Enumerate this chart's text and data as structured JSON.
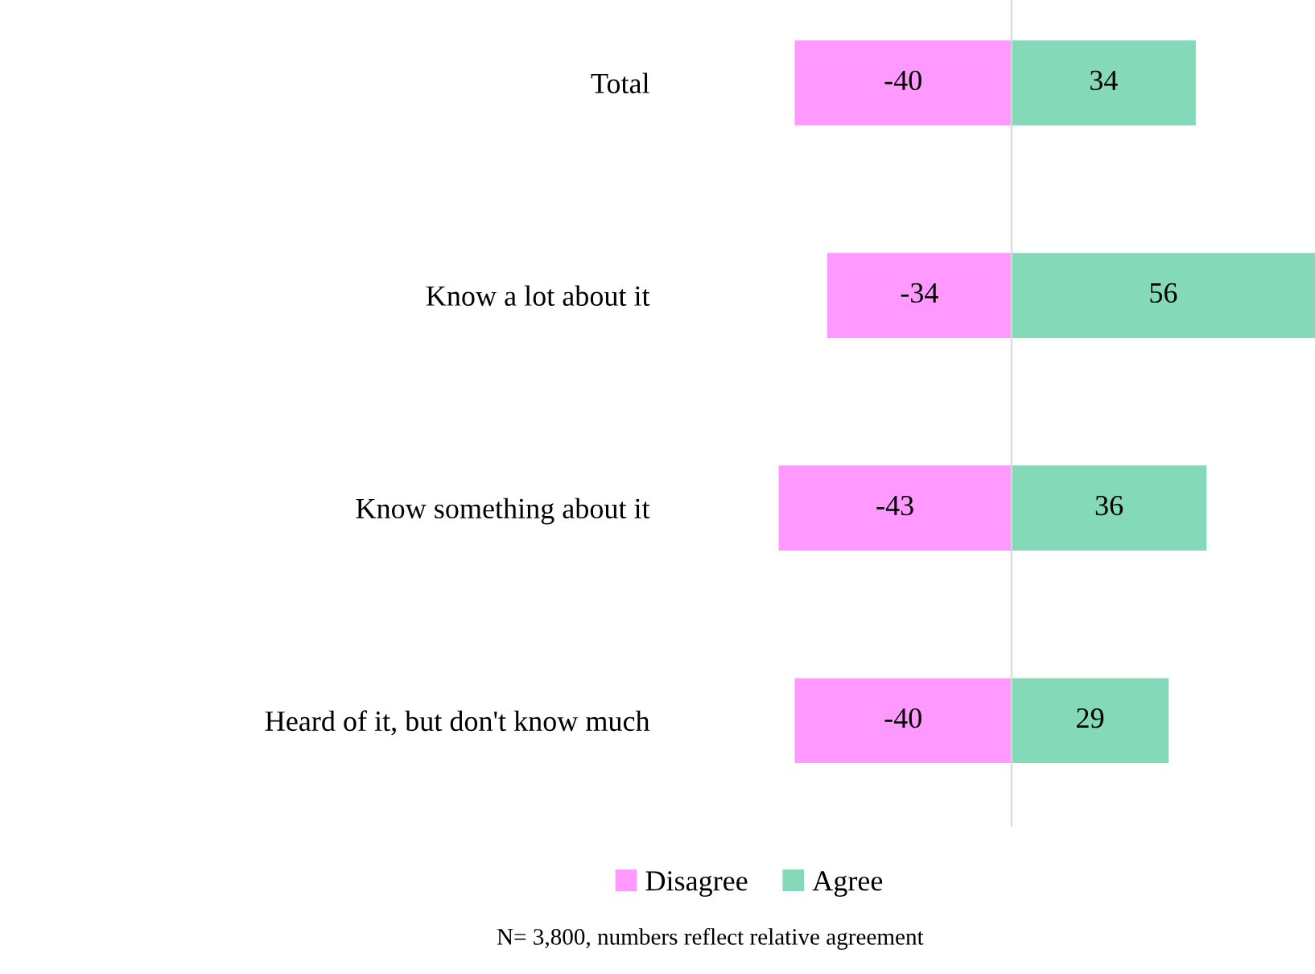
{
  "chart_data": {
    "type": "bar",
    "orientation": "horizontal",
    "stacked": true,
    "categories": [
      "Total",
      "Know a lot about it",
      "Know something about it",
      "Heard of it, but don't know much"
    ],
    "series": [
      {
        "name": "Disagree",
        "color": "#ff99ff",
        "values": [
          -40,
          -34,
          -43,
          -40
        ]
      },
      {
        "name": "Agree",
        "color": "#84d9b8",
        "values": [
          34,
          56,
          36,
          29
        ]
      }
    ],
    "data_labels": true,
    "tick_labels": "y",
    "grid": false,
    "legend": "bottom",
    "ref_lines": [
      {
        "axis": "x",
        "value": 0,
        "label": null,
        "color": "#d9d9d9"
      }
    ],
    "annotations": [
      "N= 3,800, numbers reflect relative agreement"
    ]
  }
}
